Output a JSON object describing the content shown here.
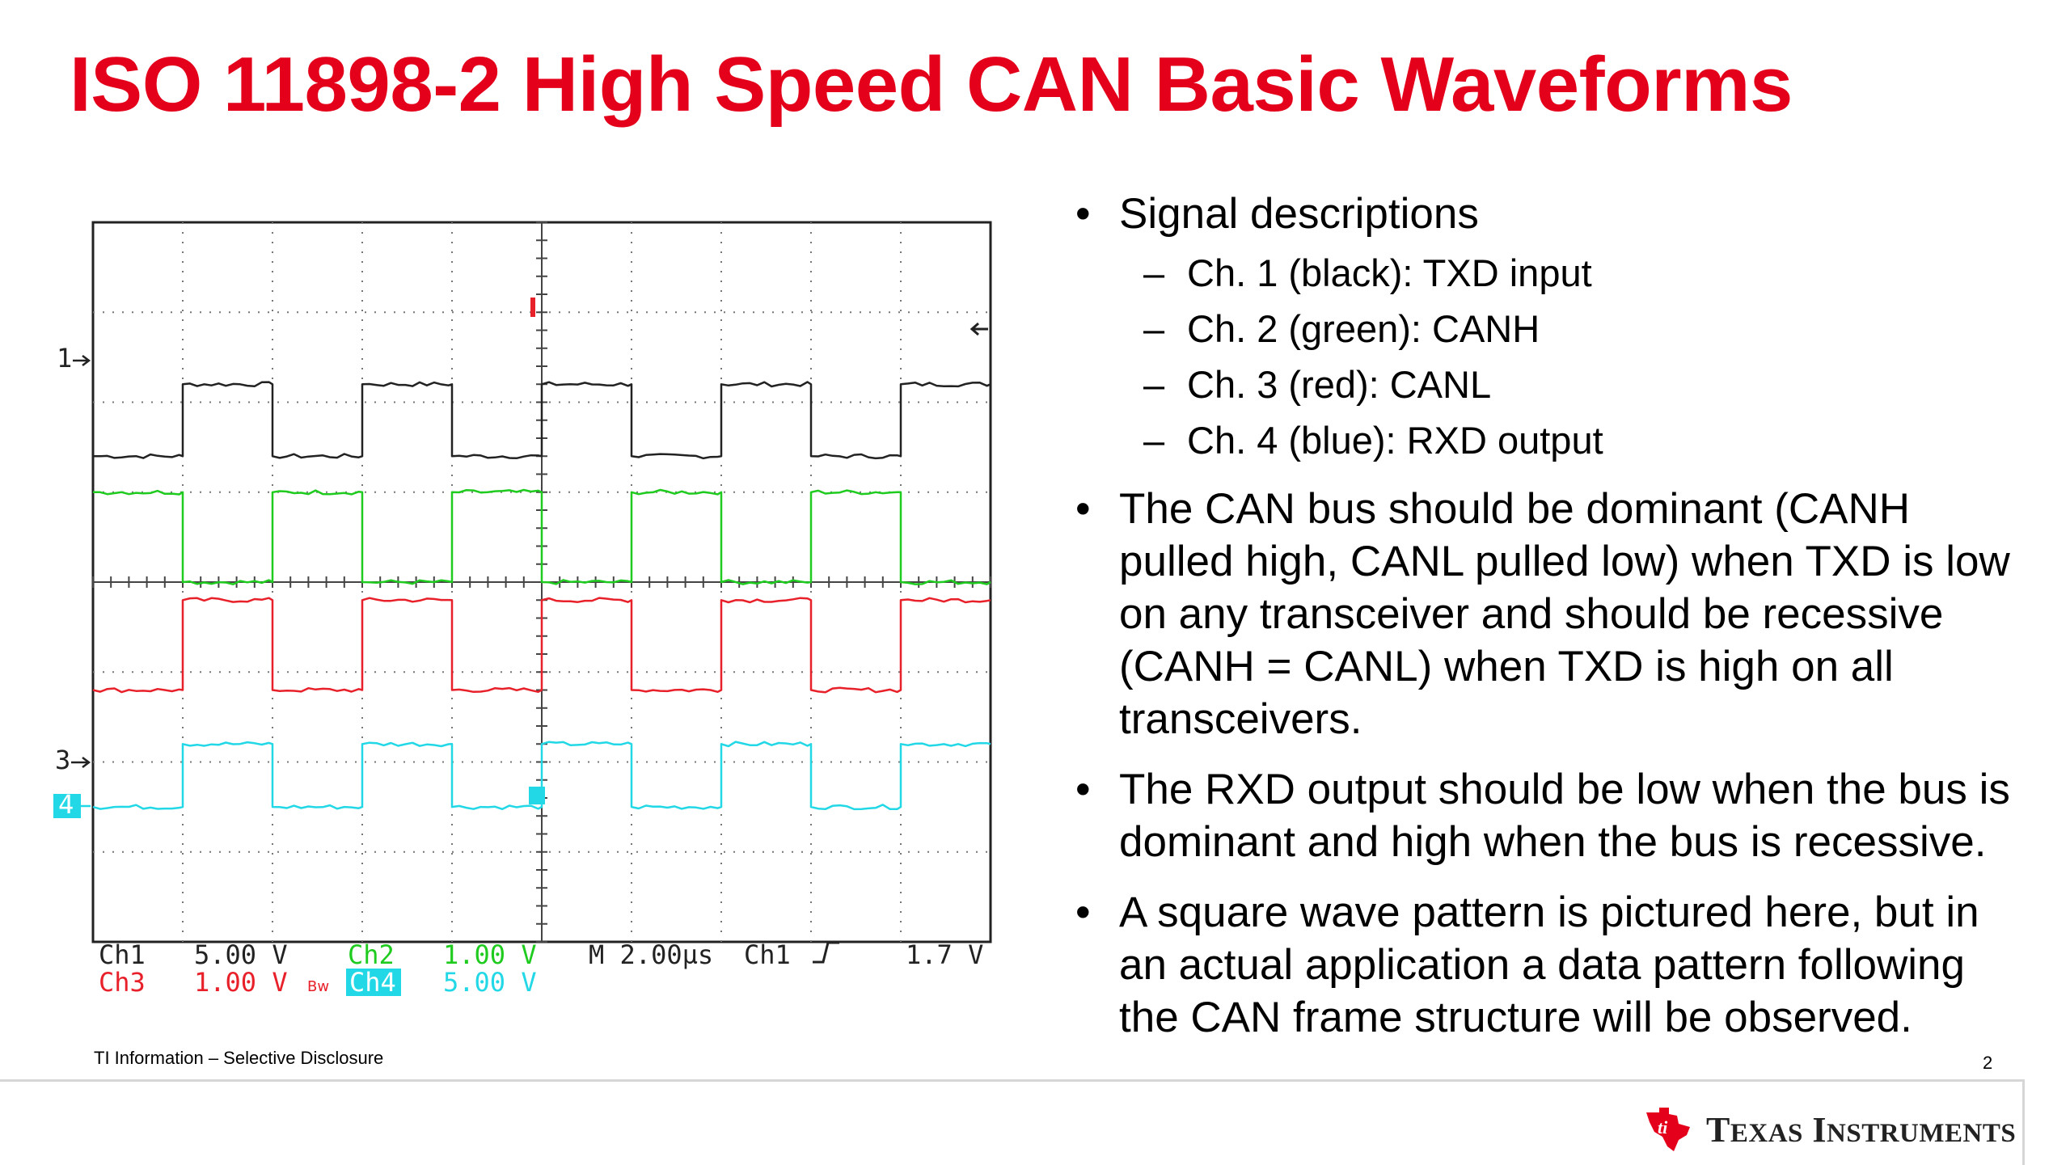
{
  "slide": {
    "title": "ISO 11898-2 High Speed CAN Basic Waveforms",
    "footer_note": "TI Information – Selective Disclosure",
    "page_number": "2",
    "logo_text_first_initial": "T",
    "logo_text_first_rest": "EXAS",
    "logo_text_second_initial": "I",
    "logo_text_second_rest": "NSTRUMENTS"
  },
  "bullets": [
    {
      "text": "Signal descriptions",
      "subitems": [
        "Ch. 1 (black): TXD input",
        "Ch. 2 (green): CANH",
        "Ch. 3 (red): CANL",
        "Ch. 4 (blue): RXD output"
      ]
    },
    {
      "lines": [
        "The CAN bus should be dominant (CANH",
        "pulled high, CANL pulled low) when TXD is low",
        "on any transceiver and should be recessive",
        "(CANH = CANL) when TXD is high on all",
        "transceivers."
      ]
    },
    {
      "lines": [
        "The RXD output should be low when the bus is",
        "dominant and high when the bus is recessive."
      ]
    },
    {
      "lines": [
        "A square wave pattern is pictured here, but in",
        "an actual application a data pattern following",
        "the CAN frame structure will be observed."
      ]
    }
  ],
  "scope": {
    "markers": {
      "ch1": "1",
      "ch3": "3",
      "ch4": "4"
    },
    "readout": {
      "ch1_name": "Ch1",
      "ch1_scale": "5.00 V",
      "ch2_name": "Ch2",
      "ch2_scale": "1.00 V",
      "ch3_name": "Ch3",
      "ch3_scale": "1.00 V",
      "bw_symbol": "Bw",
      "ch4_name": "Ch4",
      "ch4_scale": "5.00 V",
      "timebase": "M 2.00µs",
      "trigger_source": "Ch1",
      "trigger_level": "1.7 V"
    },
    "trace_colors": {
      "ch1": "#222222",
      "ch2": "#1ecb1e",
      "ch3": "#e8202a",
      "ch4": "#22d8e6"
    },
    "accent_color": "#e4001b"
  },
  "chart_data": {
    "type": "line",
    "title": "",
    "xlabel": "",
    "ylabel": "",
    "x_divisions": 10,
    "y_divisions": 8,
    "timebase_per_div": "2.00µs",
    "series": [
      {
        "name": "Ch1",
        "scale": "5.00 V/div",
        "toggle_x_div": [
          1,
          2,
          3,
          4,
          5,
          6,
          7,
          8,
          9
        ],
        "start_state": "low",
        "levels_div": {
          "low": 5.4,
          "high": 6.2
        }
      },
      {
        "name": "Ch2",
        "scale": "1.00 V/div",
        "toggle_x_div": [
          1,
          2,
          3,
          4,
          5,
          6,
          7,
          8,
          9
        ],
        "start_state": "high",
        "levels_div": {
          "low": 4.0,
          "high": 5.0
        }
      },
      {
        "name": "Ch3",
        "scale": "1.00 V/div",
        "toggle_x_div": [
          1,
          2,
          3,
          4,
          5,
          6,
          7,
          8,
          9
        ],
        "start_state": "low",
        "levels_div": {
          "low": 2.8,
          "high": 3.8
        }
      },
      {
        "name": "Ch4",
        "scale": "5.00 V/div",
        "toggle_x_div": [
          1,
          2,
          3,
          4,
          5,
          6,
          7,
          8,
          9
        ],
        "start_state": "low",
        "levels_div": {
          "low": 1.5,
          "high": 2.2
        }
      }
    ]
  }
}
